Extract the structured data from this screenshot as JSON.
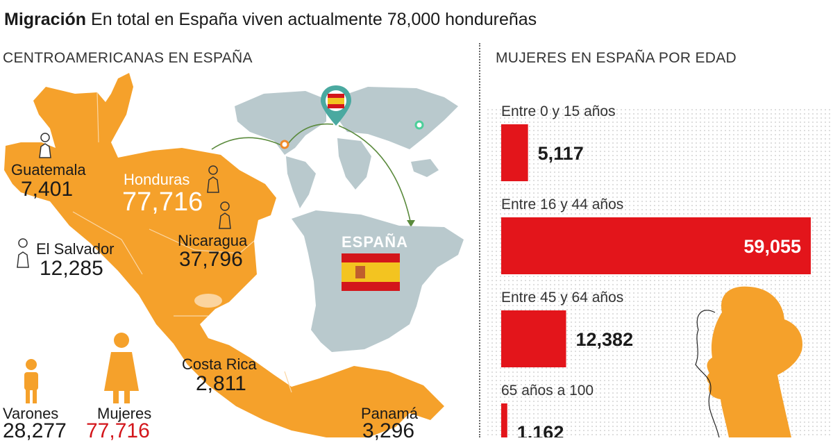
{
  "header": {
    "bold": "Migración",
    "text": "En total en España viven actualmente 78,000 hondureñas"
  },
  "map_section": {
    "title": "CENTROAMERICANAS EN ESPAÑA",
    "countries": [
      {
        "name": "Guatemala",
        "value": "7,401"
      },
      {
        "name": "Honduras",
        "value": "77,716"
      },
      {
        "name": "El Salvador",
        "value": "12,285"
      },
      {
        "name": "Nicaragua",
        "value": "37,796"
      },
      {
        "name": "Costa Rica",
        "value": "2,811"
      },
      {
        "name": "Panamá",
        "value": "3,296"
      }
    ],
    "spain_label": "ESPAÑA",
    "totals": {
      "men_label": "Varones",
      "men_value": "28,277",
      "women_label": "Mujeres",
      "women_value": "77,716"
    },
    "colors": {
      "land": "#f5a12b",
      "accent": "#d3161b",
      "world": "#b8c8cc"
    }
  },
  "chart_data": {
    "type": "bar",
    "title": "MUJERES EN ESPAÑA POR EDAD",
    "categories": [
      "Entre 0 y 15 años",
      "Entre 16 y 44 años",
      "Entre 45 y 64 años",
      "65 años a 100"
    ],
    "values": [
      5117,
      59055,
      12382,
      1162
    ],
    "value_labels": [
      "5,117",
      "59,055",
      "12,382",
      "1,162"
    ],
    "orientation": "horizontal",
    "bar_color": "#e3151b"
  }
}
